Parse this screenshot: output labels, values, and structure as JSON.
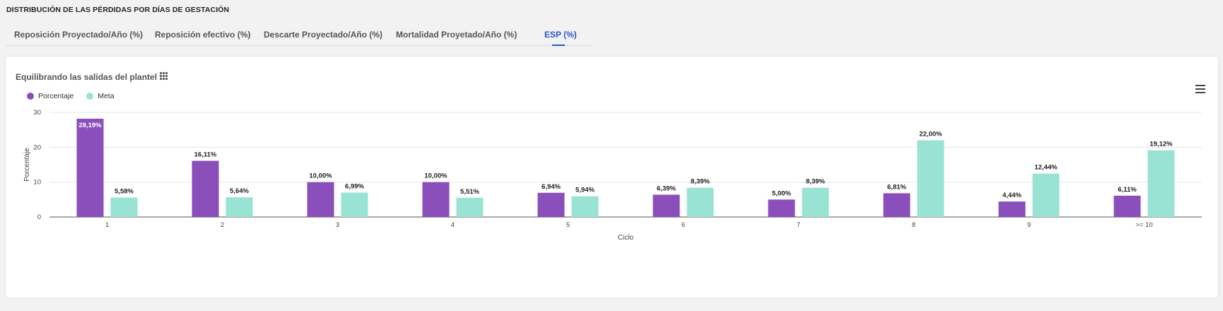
{
  "page": {
    "title": "DISTRIBUCIÓN DE LAS PÉRDIDAS POR DÍAS DE GESTACIÓN"
  },
  "tabs": [
    {
      "label": "Reposición Proyectado/Año (%)",
      "active": false
    },
    {
      "label": "Reposición efectivo (%)",
      "active": false
    },
    {
      "label": "Descarte Proyectado/Año (%)",
      "active": false
    },
    {
      "label": "Mortalidad Proyetado/Año (%)",
      "active": false
    },
    {
      "label": "ESP (%)",
      "active": true
    }
  ],
  "card": {
    "icons": {
      "grid": "grid-icon",
      "menu": "hamburger-menu-icon"
    }
  },
  "colors": {
    "accent": "#2d55c9",
    "porcentaje": "#8a4fbb",
    "meta": "#98e3d3"
  },
  "chart_data": {
    "type": "bar",
    "title": "Equilibrando las salidas del plantel",
    "xlabel": "Ciclo",
    "ylabel": "Porcentaje",
    "categories": [
      "1",
      "2",
      "3",
      "4",
      "5",
      "6",
      "7",
      "8",
      "9",
      ">= 10"
    ],
    "series": [
      {
        "name": "Porcentaje",
        "values": [
          28.19,
          16.11,
          10.0,
          10.0,
          6.94,
          6.39,
          5.0,
          6.81,
          4.44,
          6.11
        ],
        "labels": [
          "28,19%",
          "16,11%",
          "10,00%",
          "10,00%",
          "6,94%",
          "6,39%",
          "5,00%",
          "6,81%",
          "4,44%",
          "6,11%"
        ]
      },
      {
        "name": "Meta",
        "values": [
          5.58,
          5.64,
          6.99,
          5.51,
          5.94,
          8.39,
          8.39,
          22.0,
          12.44,
          19.12
        ],
        "labels": [
          "5,58%",
          "5,64%",
          "6,99%",
          "5,51%",
          "5,94%",
          "8,39%",
          "8,39%",
          "22,00%",
          "12,44%",
          "19,12%"
        ]
      }
    ],
    "ylim": [
      0,
      30
    ],
    "yticks": [
      0,
      10,
      20,
      30
    ],
    "grid": true,
    "legend": "top-left"
  }
}
